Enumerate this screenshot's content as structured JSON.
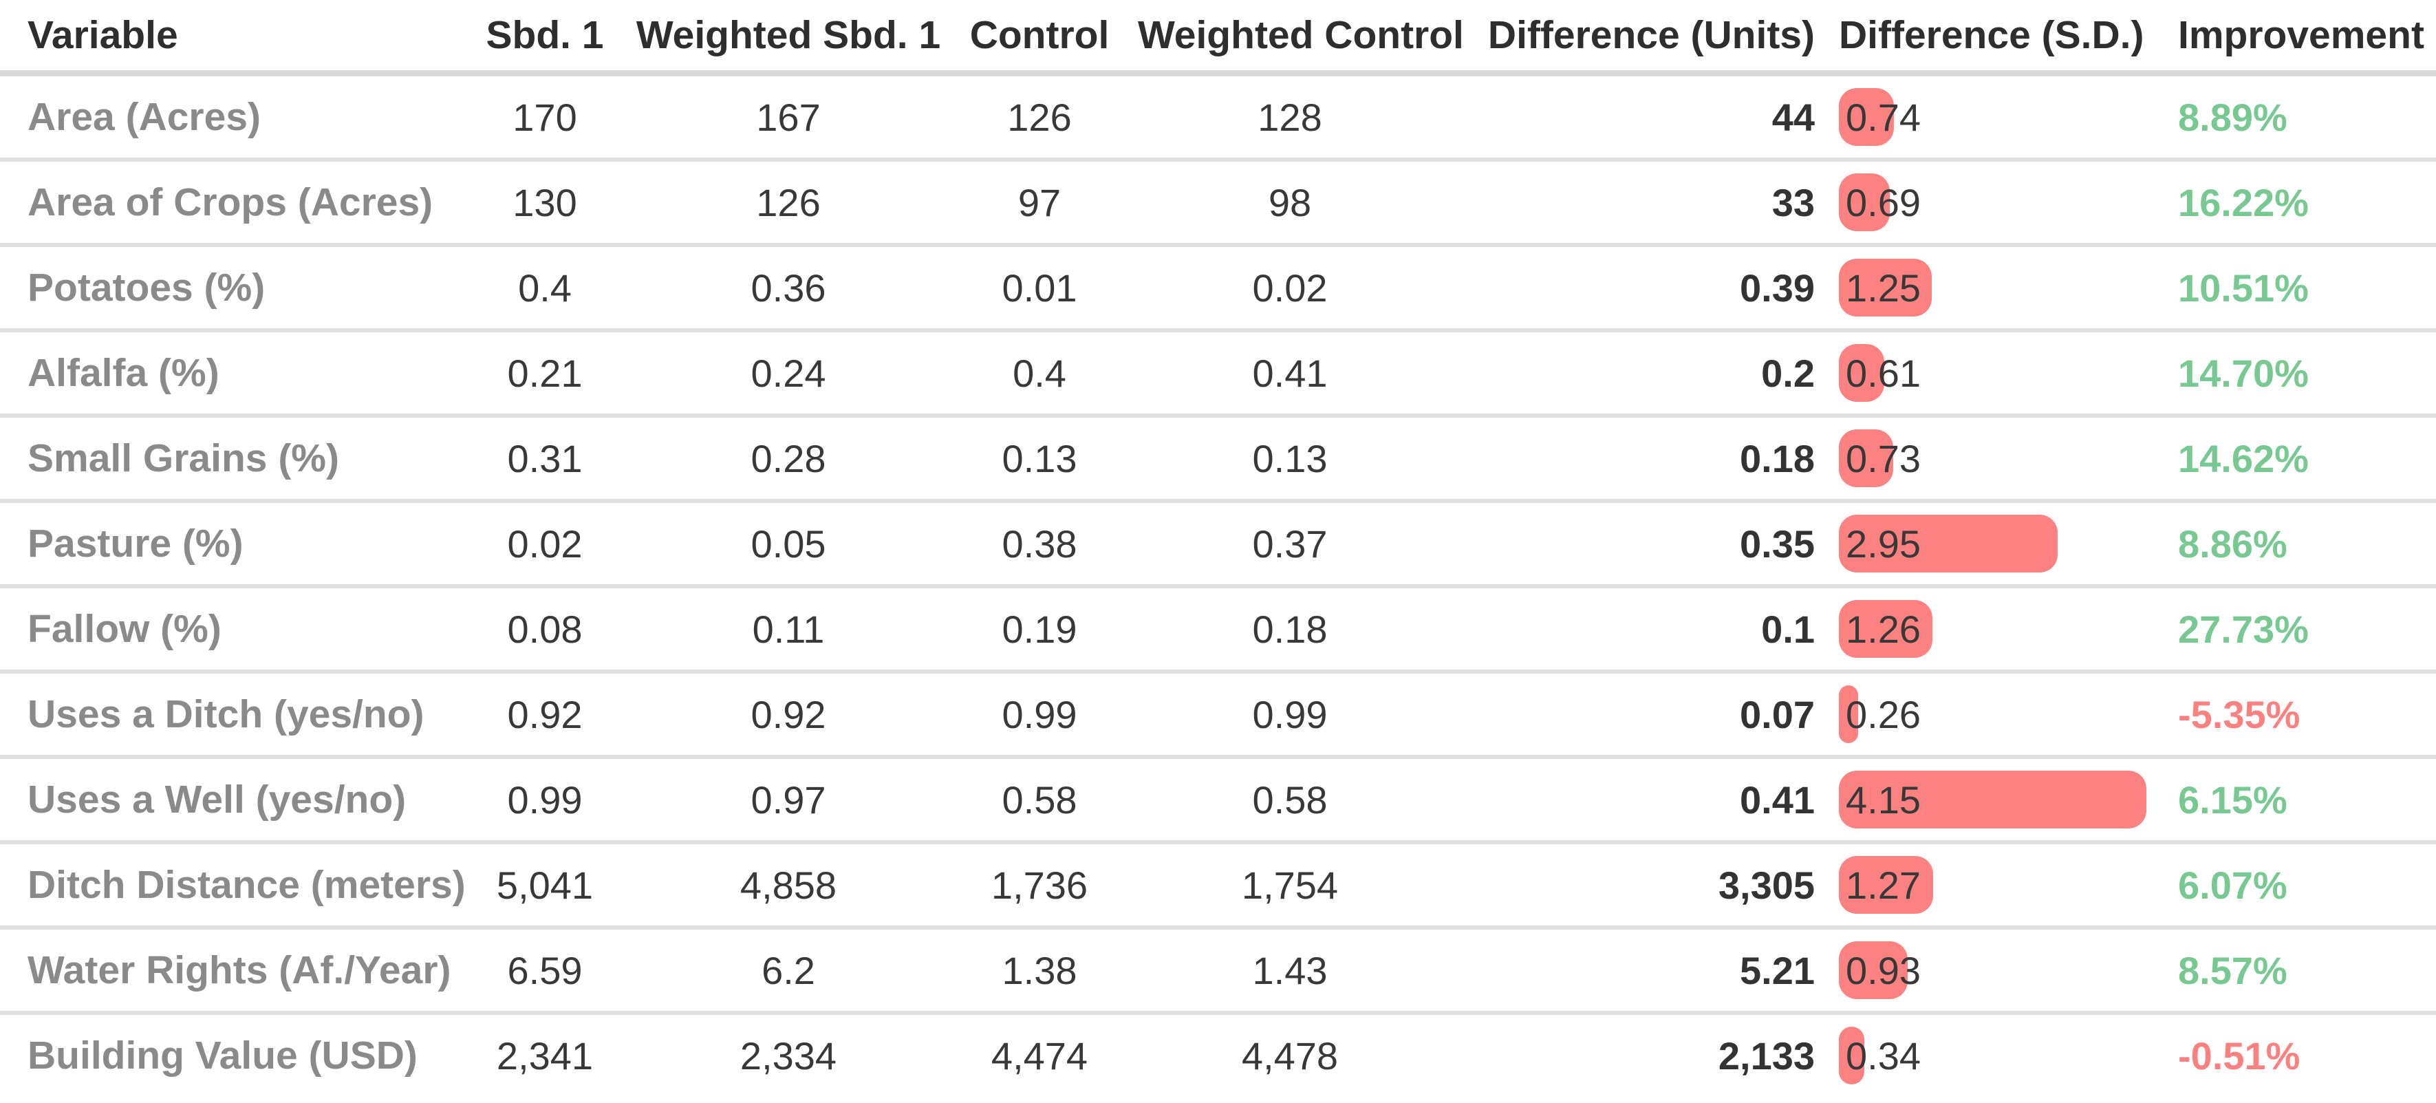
{
  "colors": {
    "bar": "#fc8181",
    "positive_improvement": "#77c891",
    "negative_improvement": "#fb8181",
    "header_text": "#2e2e2e",
    "row_label_text": "#8a8a8a",
    "value_text": "#383838",
    "divider": "#e0e0e0"
  },
  "table": {
    "columns": [
      {
        "key": "variable",
        "label": "Variable"
      },
      {
        "key": "sbd1",
        "label": "Sbd. 1"
      },
      {
        "key": "wsbd1",
        "label": "Weighted Sbd. 1"
      },
      {
        "key": "control",
        "label": "Control"
      },
      {
        "key": "wcontrol",
        "label": "Weighted Control"
      },
      {
        "key": "diff_units",
        "label": "Difference (Units)"
      },
      {
        "key": "diff_sd",
        "label": "Difference (S.D.)"
      },
      {
        "key": "improvement",
        "label": "Improvement"
      }
    ],
    "rows": [
      {
        "variable": "Area (Acres)",
        "sbd1": "170",
        "wsbd1": "167",
        "control": "126",
        "wcontrol": "128",
        "diff_units": "44",
        "diff_sd": "0.74",
        "improvement": "8.89%"
      },
      {
        "variable": "Area of Crops (Acres)",
        "sbd1": "130",
        "wsbd1": "126",
        "control": "97",
        "wcontrol": "98",
        "diff_units": "33",
        "diff_sd": "0.69",
        "improvement": "16.22%"
      },
      {
        "variable": "Potatoes (%)",
        "sbd1": "0.4",
        "wsbd1": "0.36",
        "control": "0.01",
        "wcontrol": "0.02",
        "diff_units": "0.39",
        "diff_sd": "1.25",
        "improvement": "10.51%"
      },
      {
        "variable": "Alfalfa (%)",
        "sbd1": "0.21",
        "wsbd1": "0.24",
        "control": "0.4",
        "wcontrol": "0.41",
        "diff_units": "0.2",
        "diff_sd": "0.61",
        "improvement": "14.70%"
      },
      {
        "variable": "Small Grains (%)",
        "sbd1": "0.31",
        "wsbd1": "0.28",
        "control": "0.13",
        "wcontrol": "0.13",
        "diff_units": "0.18",
        "diff_sd": "0.73",
        "improvement": "14.62%"
      },
      {
        "variable": "Pasture (%)",
        "sbd1": "0.02",
        "wsbd1": "0.05",
        "control": "0.38",
        "wcontrol": "0.37",
        "diff_units": "0.35",
        "diff_sd": "2.95",
        "improvement": "8.86%"
      },
      {
        "variable": "Fallow (%)",
        "sbd1": "0.08",
        "wsbd1": "0.11",
        "control": "0.19",
        "wcontrol": "0.18",
        "diff_units": "0.1",
        "diff_sd": "1.26",
        "improvement": "27.73%"
      },
      {
        "variable": "Uses a Ditch (yes/no)",
        "sbd1": "0.92",
        "wsbd1": "0.92",
        "control": "0.99",
        "wcontrol": "0.99",
        "diff_units": "0.07",
        "diff_sd": "0.26",
        "improvement": "-5.35%"
      },
      {
        "variable": "Uses a Well (yes/no)",
        "sbd1": "0.99",
        "wsbd1": "0.97",
        "control": "0.58",
        "wcontrol": "0.58",
        "diff_units": "0.41",
        "diff_sd": "4.15",
        "improvement": "6.15%"
      },
      {
        "variable": "Ditch Distance (meters)",
        "sbd1": "5,041",
        "wsbd1": "4,858",
        "control": "1,736",
        "wcontrol": "1,754",
        "diff_units": "3,305",
        "diff_sd": "1.27",
        "improvement": "6.07%"
      },
      {
        "variable": "Water Rights (Af./Year)",
        "sbd1": "6.59",
        "wsbd1": "6.2",
        "control": "1.38",
        "wcontrol": "1.43",
        "diff_units": "5.21",
        "diff_sd": "0.93",
        "improvement": "8.57%"
      },
      {
        "variable": "Building Value (USD)",
        "sbd1": "2,341",
        "wsbd1": "2,334",
        "control": "4,474",
        "wcontrol": "4,478",
        "diff_units": "2,133",
        "diff_sd": "0.34",
        "improvement": "-0.51%"
      }
    ]
  },
  "chart_data": {
    "type": "table",
    "title": "",
    "columns": [
      "Variable",
      "Sbd. 1",
      "Weighted Sbd. 1",
      "Control",
      "Weighted Control",
      "Difference (Units)",
      "Difference (S.D.)",
      "Improvement"
    ],
    "bar_column": "Difference (S.D.)",
    "bar_color": "#fc8181",
    "rows": [
      [
        "Area (Acres)",
        170,
        167,
        126,
        128,
        44,
        0.74,
        "8.89%"
      ],
      [
        "Area of Crops (Acres)",
        130,
        126,
        97,
        98,
        33,
        0.69,
        "16.22%"
      ],
      [
        "Potatoes (%)",
        0.4,
        0.36,
        0.01,
        0.02,
        0.39,
        1.25,
        "10.51%"
      ],
      [
        "Alfalfa (%)",
        0.21,
        0.24,
        0.4,
        0.41,
        0.2,
        0.61,
        "14.70%"
      ],
      [
        "Small Grains (%)",
        0.31,
        0.28,
        0.13,
        0.13,
        0.18,
        0.73,
        "14.62%"
      ],
      [
        "Pasture (%)",
        0.02,
        0.05,
        0.38,
        0.37,
        0.35,
        2.95,
        "8.86%"
      ],
      [
        "Fallow (%)",
        0.08,
        0.11,
        0.19,
        0.18,
        0.1,
        1.26,
        "27.73%"
      ],
      [
        "Uses a Ditch (yes/no)",
        0.92,
        0.92,
        0.99,
        0.99,
        0.07,
        0.26,
        "-5.35%"
      ],
      [
        "Uses a Well (yes/no)",
        0.99,
        0.97,
        0.58,
        0.58,
        0.41,
        4.15,
        "6.15%"
      ],
      [
        "Ditch Distance (meters)",
        5041,
        4858,
        1736,
        1754,
        3305,
        1.27,
        "6.07%"
      ],
      [
        "Water Rights (Af./Year)",
        6.59,
        6.2,
        1.38,
        1.43,
        5.21,
        0.93,
        "8.57%"
      ],
      [
        "Building Value (USD)",
        2341,
        2334,
        4474,
        4478,
        2133,
        0.34,
        "-0.51%"
      ]
    ]
  }
}
